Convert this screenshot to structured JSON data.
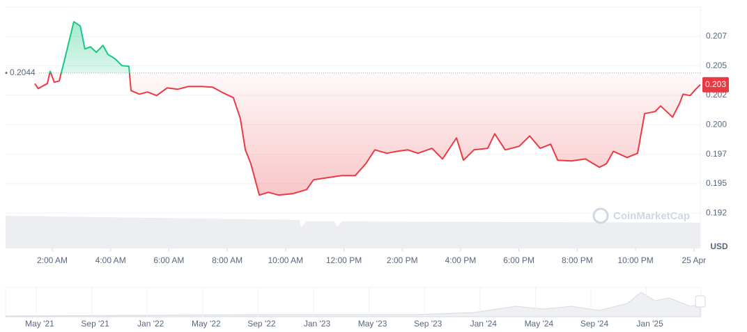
{
  "chart_data": {
    "type": "line",
    "x": [
      1.4,
      1.52,
      1.69,
      1.83,
      1.93,
      2.07,
      2.24,
      2.41,
      2.6,
      2.74,
      2.96,
      3.12,
      3.31,
      3.51,
      3.74,
      3.91,
      4.15,
      4.39,
      4.63,
      4.7,
      4.99,
      5.27,
      5.58,
      5.94,
      6.3,
      6.66,
      7.14,
      7.5,
      7.85,
      8.21,
      8.45,
      8.62,
      8.81,
      9.1,
      9.41,
      9.77,
      10.24,
      10.72,
      10.96,
      11.44,
      11.92,
      12.39,
      12.75,
      13.06,
      13.47,
      13.83,
      14.19,
      14.54,
      15.02,
      15.38,
      15.86,
      16.1,
      16.46,
      16.93,
      17.17,
      17.53,
      18.01,
      18.37,
      18.73,
      19.09,
      19.33,
      19.8,
      20.28,
      20.76,
      21.0,
      21.24,
      21.71,
      22.07,
      22.31,
      22.67,
      22.86,
      23.27,
      23.51,
      23.63,
      23.87,
      24.06,
      24.22
    ],
    "values": [
      0.20349,
      0.20307,
      0.20331,
      0.20349,
      0.20455,
      0.20361,
      0.20372,
      0.20538,
      0.20733,
      0.20875,
      0.20839,
      0.20644,
      0.20662,
      0.20615,
      0.20674,
      0.20597,
      0.20561,
      0.20502,
      0.20496,
      0.2029,
      0.2026,
      0.20278,
      0.20248,
      0.20313,
      0.20301,
      0.20325,
      0.20325,
      0.20319,
      0.20272,
      0.2023,
      0.20053,
      0.19787,
      0.19669,
      0.19403,
      0.19427,
      0.19403,
      0.19415,
      0.1945,
      0.19533,
      0.19551,
      0.19569,
      0.19569,
      0.19669,
      0.19787,
      0.19758,
      0.19775,
      0.19787,
      0.19758,
      0.198,
      0.1971,
      0.19888,
      0.19699,
      0.19787,
      0.198,
      0.19923,
      0.19787,
      0.19817,
      0.19905,
      0.198,
      0.19835,
      0.19699,
      0.19693,
      0.1971,
      0.19639,
      0.19669,
      0.19775,
      0.19722,
      0.19758,
      0.20095,
      0.20112,
      0.2016,
      0.20065,
      0.20183,
      0.2026,
      0.20248,
      0.20301,
      0.2034
    ],
    "baseline": 0.2044,
    "last_label": "0.203",
    "color_up": "#16c784",
    "color_down": "#ea3943",
    "xlim": [
      0.4,
      24.22
    ],
    "ylim": [
      0.1895,
      0.21
    ],
    "xticks": [
      {
        "value": 2,
        "label": "2:00 AM"
      },
      {
        "value": 4,
        "label": "4:00 AM"
      },
      {
        "value": 6,
        "label": "6:00 AM"
      },
      {
        "value": 8,
        "label": "8:00 AM"
      },
      {
        "value": 10,
        "label": "10:00 AM"
      },
      {
        "value": 12,
        "label": "12:00 PM"
      },
      {
        "value": 14,
        "label": "2:00 PM"
      },
      {
        "value": 16,
        "label": "4:00 PM"
      },
      {
        "value": 18,
        "label": "6:00 PM"
      },
      {
        "value": 20,
        "label": "8:00 PM"
      },
      {
        "value": 22,
        "label": "10:00 PM"
      },
      {
        "value": 24,
        "label": "25 Apr"
      }
    ],
    "yticks": [
      {
        "value": 0.2075,
        "label": "0.207"
      },
      {
        "value": 0.205,
        "label": "0.205"
      },
      {
        "value": 0.2025,
        "label": "0.202"
      },
      {
        "value": 0.2,
        "label": "0.200"
      },
      {
        "value": 0.1975,
        "label": "0.197"
      },
      {
        "value": 0.195,
        "label": "0.195"
      },
      {
        "value": 0.1925,
        "label": "0.192"
      }
    ],
    "grid": true,
    "y_unit": "USD",
    "watermark": "CoinMarketCap",
    "navigator_labels": [
      "May '21",
      "Sep '21",
      "Jan '22",
      "May '22",
      "Sep '22",
      "Jan '23",
      "May '23",
      "Sep '23",
      "Jan '24",
      "May '24",
      "Sep '24",
      "Jan '25"
    ]
  }
}
